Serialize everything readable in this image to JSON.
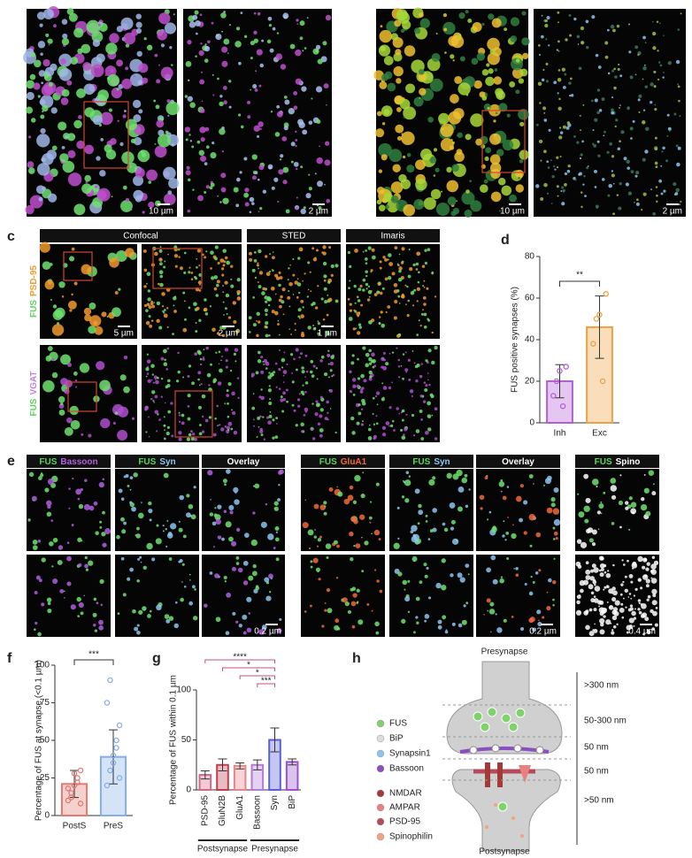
{
  "panel_ab": {
    "scale_bars": [
      "10 µm",
      "2 µm",
      "10 µm",
      "2 µm"
    ]
  },
  "panel_c": {
    "label": "c",
    "headers": [
      "Confocal",
      "STED",
      "Imaris"
    ],
    "rows": [
      [
        {
          "text": "FUS",
          "color": "#5dd35d"
        },
        {
          "text": "PSD-95",
          "color": "#f39a2e"
        }
      ],
      [
        {
          "text": "FUS",
          "color": "#5dd35d"
        },
        {
          "text": "VGAT",
          "color": "#c77ee0"
        }
      ]
    ],
    "scale_bars": [
      "5 µm",
      "2 µm",
      "1 µm"
    ]
  },
  "panel_d": {
    "label": "d",
    "type": "bar",
    "ylabel": "FUS positive synapses (%)",
    "categories": [
      "Inh",
      "Exc"
    ],
    "values": [
      20,
      46
    ],
    "errors": [
      8,
      15
    ],
    "colors": [
      "#b35ed6",
      "#f0a040"
    ],
    "points": [
      [
        13,
        20,
        25,
        8,
        27
      ],
      [
        38,
        50,
        52,
        20,
        62
      ]
    ],
    "ylim": [
      0,
      80
    ],
    "yticks": [
      0,
      20,
      40,
      60,
      80
    ],
    "significance": [
      "**"
    ]
  },
  "panel_e": {
    "label": "e",
    "headers": [
      [
        {
          "text": "FUS",
          "color": "#5dd35d"
        },
        {
          "text": "Bassoon",
          "color": "#b25fe0"
        }
      ],
      [
        {
          "text": "FUS",
          "color": "#5dd35d"
        },
        {
          "text": "Syn",
          "color": "#8cc6ef"
        }
      ],
      [
        {
          "text": "Overlay",
          "color": "#ffffff"
        }
      ],
      [
        {
          "text": "FUS",
          "color": "#5dd35d"
        },
        {
          "text": "GluA1",
          "color": "#f06a3a"
        }
      ],
      [
        {
          "text": "FUS",
          "color": "#5dd35d"
        },
        {
          "text": "Syn",
          "color": "#8cc6ef"
        }
      ],
      [
        {
          "text": "Overlay",
          "color": "#ffffff"
        }
      ],
      [
        {
          "text": "FUS",
          "color": "#5dd35d"
        },
        {
          "text": "Spino",
          "color": "#ffffff"
        }
      ]
    ],
    "scale_bars": [
      "0.2 µm",
      "0.2 µm",
      "0.4 µm"
    ]
  },
  "panel_f": {
    "label": "f",
    "type": "bar",
    "ylabel": "Percentage of FUS at synapse (<0.1 µm)",
    "categories": [
      "PostS",
      "PreS"
    ],
    "values": [
      21,
      39
    ],
    "errors": [
      9,
      18
    ],
    "colors": [
      "#e27a74",
      "#86aee6"
    ],
    "points": [
      [
        10,
        15,
        20,
        25,
        30,
        18,
        12,
        28,
        22,
        8
      ],
      [
        20,
        30,
        40,
        50,
        60,
        75,
        90,
        35,
        45,
        25
      ]
    ],
    "ylim": [
      0,
      100
    ],
    "yticks": [
      0,
      25,
      50,
      75,
      100
    ],
    "significance": [
      "***"
    ]
  },
  "panel_g": {
    "label": "g",
    "type": "bar",
    "ylabel": "Percentage of FUS within 0.1 µm",
    "categories": [
      "PSD-95",
      "GluN2B",
      "GluA1",
      "Bassoon",
      "Syn",
      "BiP"
    ],
    "values": [
      15,
      25,
      24,
      25,
      50,
      28
    ],
    "errors": [
      4,
      6,
      3,
      5,
      12,
      3
    ],
    "colors": [
      "#d46a8a",
      "#c0404e",
      "#e8858a",
      "#b57ad8",
      "#5a5ed8",
      "#9b52cc"
    ],
    "ylim": [
      0,
      100
    ],
    "yticks": [
      0,
      50,
      100
    ],
    "groups": [
      "Postsynapse",
      "Presynapse"
    ],
    "significance": [
      "****",
      "*",
      "*",
      "***"
    ]
  },
  "panel_h": {
    "label": "h",
    "top": "Presynapse",
    "bottom": "Postsynapse",
    "legend": [
      {
        "text": "FUS",
        "color": "#7ed36a"
      },
      {
        "text": "BiP",
        "color": "#dddddd"
      },
      {
        "text": "Synapsin1",
        "color": "#8cc6ef"
      },
      {
        "text": "Bassoon",
        "color": "#8a4fc0"
      },
      {
        "text": "NMDAR",
        "color": "#a33a3a"
      },
      {
        "text": "AMPAR",
        "color": "#e88080"
      },
      {
        "text": "PSD-95",
        "color": "#b54a5a"
      },
      {
        "text": "Spinophilin",
        "color": "#f2a37e"
      }
    ],
    "distances": [
      ">300 nm",
      "50-300 nm",
      "50 nm",
      "50 nm",
      ">50 nm"
    ]
  }
}
